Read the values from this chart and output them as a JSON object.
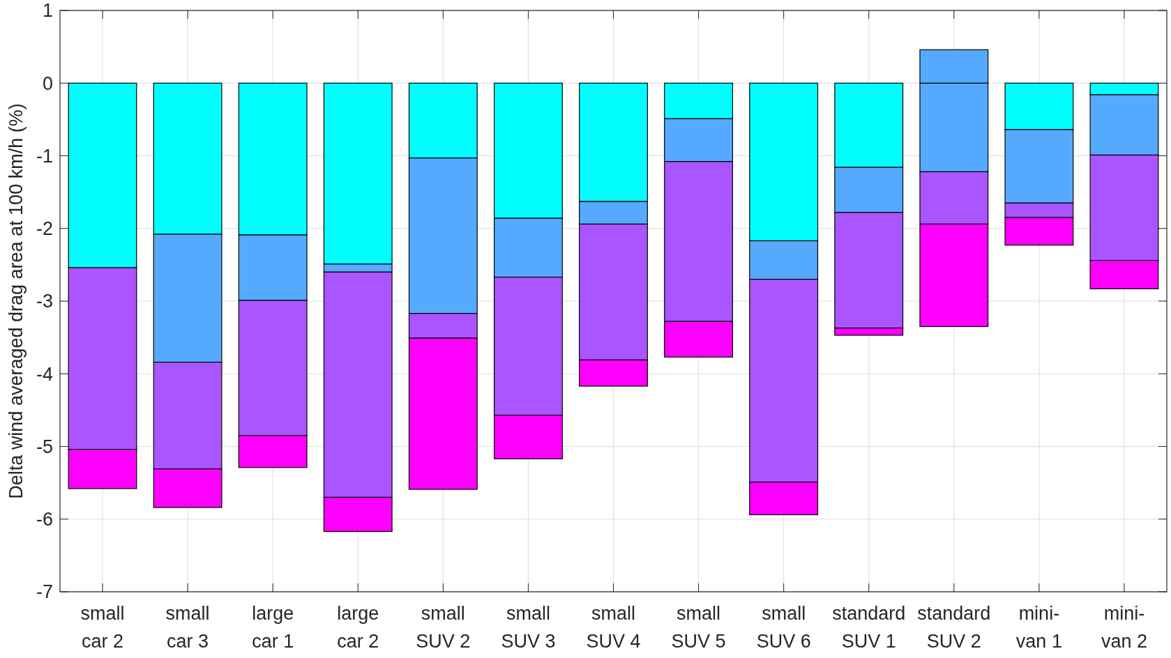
{
  "chart_data": {
    "type": "bar",
    "stacked": true,
    "ylabel": "Delta wind averaged drag area at 100 km/h (%)",
    "categories": [
      "small car 2",
      "small car 3",
      "large car 1",
      "large car 2",
      "small SUV 2",
      "small SUV 3",
      "small SUV 4",
      "small SUV 5",
      "small SUV 6",
      "standard SUV 1",
      "standard SUV 2",
      "mini-van 1",
      "mini-van 2"
    ],
    "series": [
      {
        "color": "#00ffff",
        "values": [
          -2.54,
          -2.08,
          -2.09,
          -2.49,
          -1.03,
          -1.86,
          -1.63,
          -0.49,
          -2.17,
          -1.16,
          0,
          -0.64,
          -0.16
        ]
      },
      {
        "color": "#55aaff",
        "values": [
          0,
          -1.76,
          -0.9,
          -0.11,
          -2.14,
          -0.81,
          -0.31,
          -0.59,
          -0.53,
          -0.62,
          -1.22,
          -1.01,
          -0.83
        ]
      },
      {
        "color": "#aa55ff",
        "values": [
          -2.5,
          -1.47,
          -1.86,
          -3.1,
          -0.34,
          -1.9,
          -1.87,
          -2.2,
          -2.79,
          -1.59,
          -0.72,
          -0.2,
          -1.45
        ]
      },
      {
        "color": "#ff00ff",
        "values": [
          -0.54,
          -0.53,
          -0.44,
          -0.47,
          -2.08,
          -0.6,
          -0.36,
          -0.49,
          -0.45,
          -0.1,
          -1.41,
          -0.38,
          -0.39
        ]
      },
      {
        "color": "#55aaff",
        "values": [
          null,
          null,
          null,
          null,
          null,
          null,
          null,
          null,
          null,
          null,
          0.46,
          null,
          null
        ]
      }
    ],
    "ylim": [
      -7,
      1
    ],
    "yticks": [
      -7,
      -6,
      -5,
      -4,
      -3,
      -2,
      -1,
      0,
      1
    ],
    "grid": true
  }
}
